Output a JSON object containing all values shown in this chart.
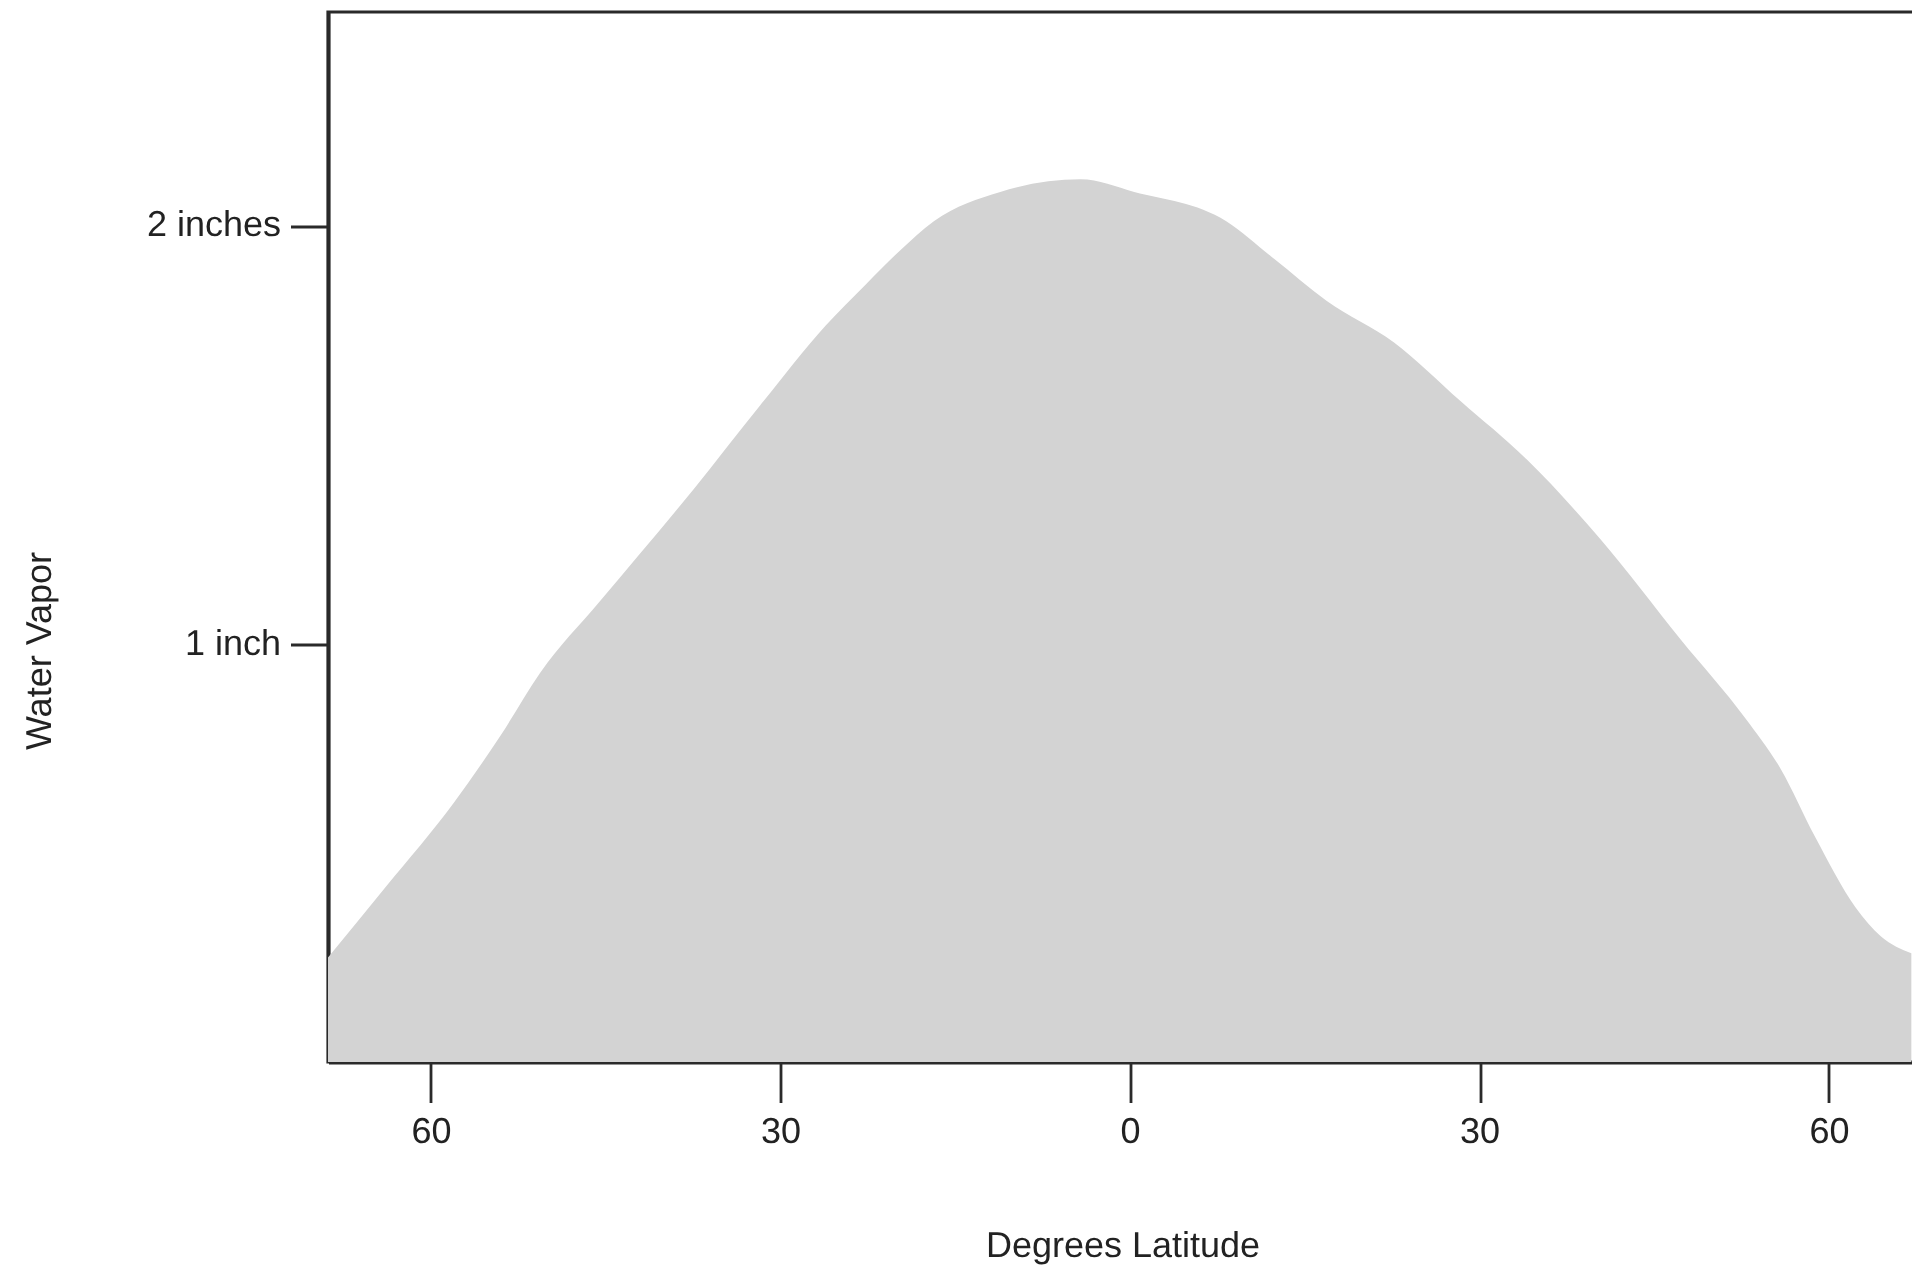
{
  "chart_data": {
    "type": "area",
    "xlabel": "Degrees Latitude",
    "ylabel": "Water Vapor",
    "color": "#d3d3d3",
    "x": [
      -68.8,
      -63.8,
      -58.0,
      -54.0,
      -50.6,
      -45.5,
      -37.4,
      -31.7,
      -26.1,
      -22.6,
      -19.7,
      -16.8,
      -11.1,
      -4.2,
      0.4,
      8.3,
      12.4,
      16.9,
      22.7,
      28.4,
      34.1,
      40.4,
      47.3,
      52.9,
      55.9,
      58.8,
      62.3,
      64.5,
      67.1
    ],
    "values": [
      0.25,
      0.42,
      0.62,
      0.78,
      0.93,
      1.1,
      1.37,
      1.57,
      1.76,
      1.86,
      1.94,
      2.01,
      2.08,
      2.11,
      2.08,
      2.01,
      1.92,
      1.82,
      1.72,
      1.58,
      1.44,
      1.25,
      1.01,
      0.82,
      0.7,
      0.54,
      0.37,
      0.3,
      0.26
    ],
    "xlim": [
      -68.8,
      67.5
    ],
    "ylim": [
      0,
      2.51
    ],
    "xticks": [
      {
        "value": -60,
        "label": "60"
      },
      {
        "value": -30,
        "label": "30"
      },
      0,
      30,
      60
    ],
    "yticks": [
      {
        "value": 1,
        "label": "1 inch"
      },
      {
        "value": 2,
        "label": "2 inches"
      }
    ]
  }
}
